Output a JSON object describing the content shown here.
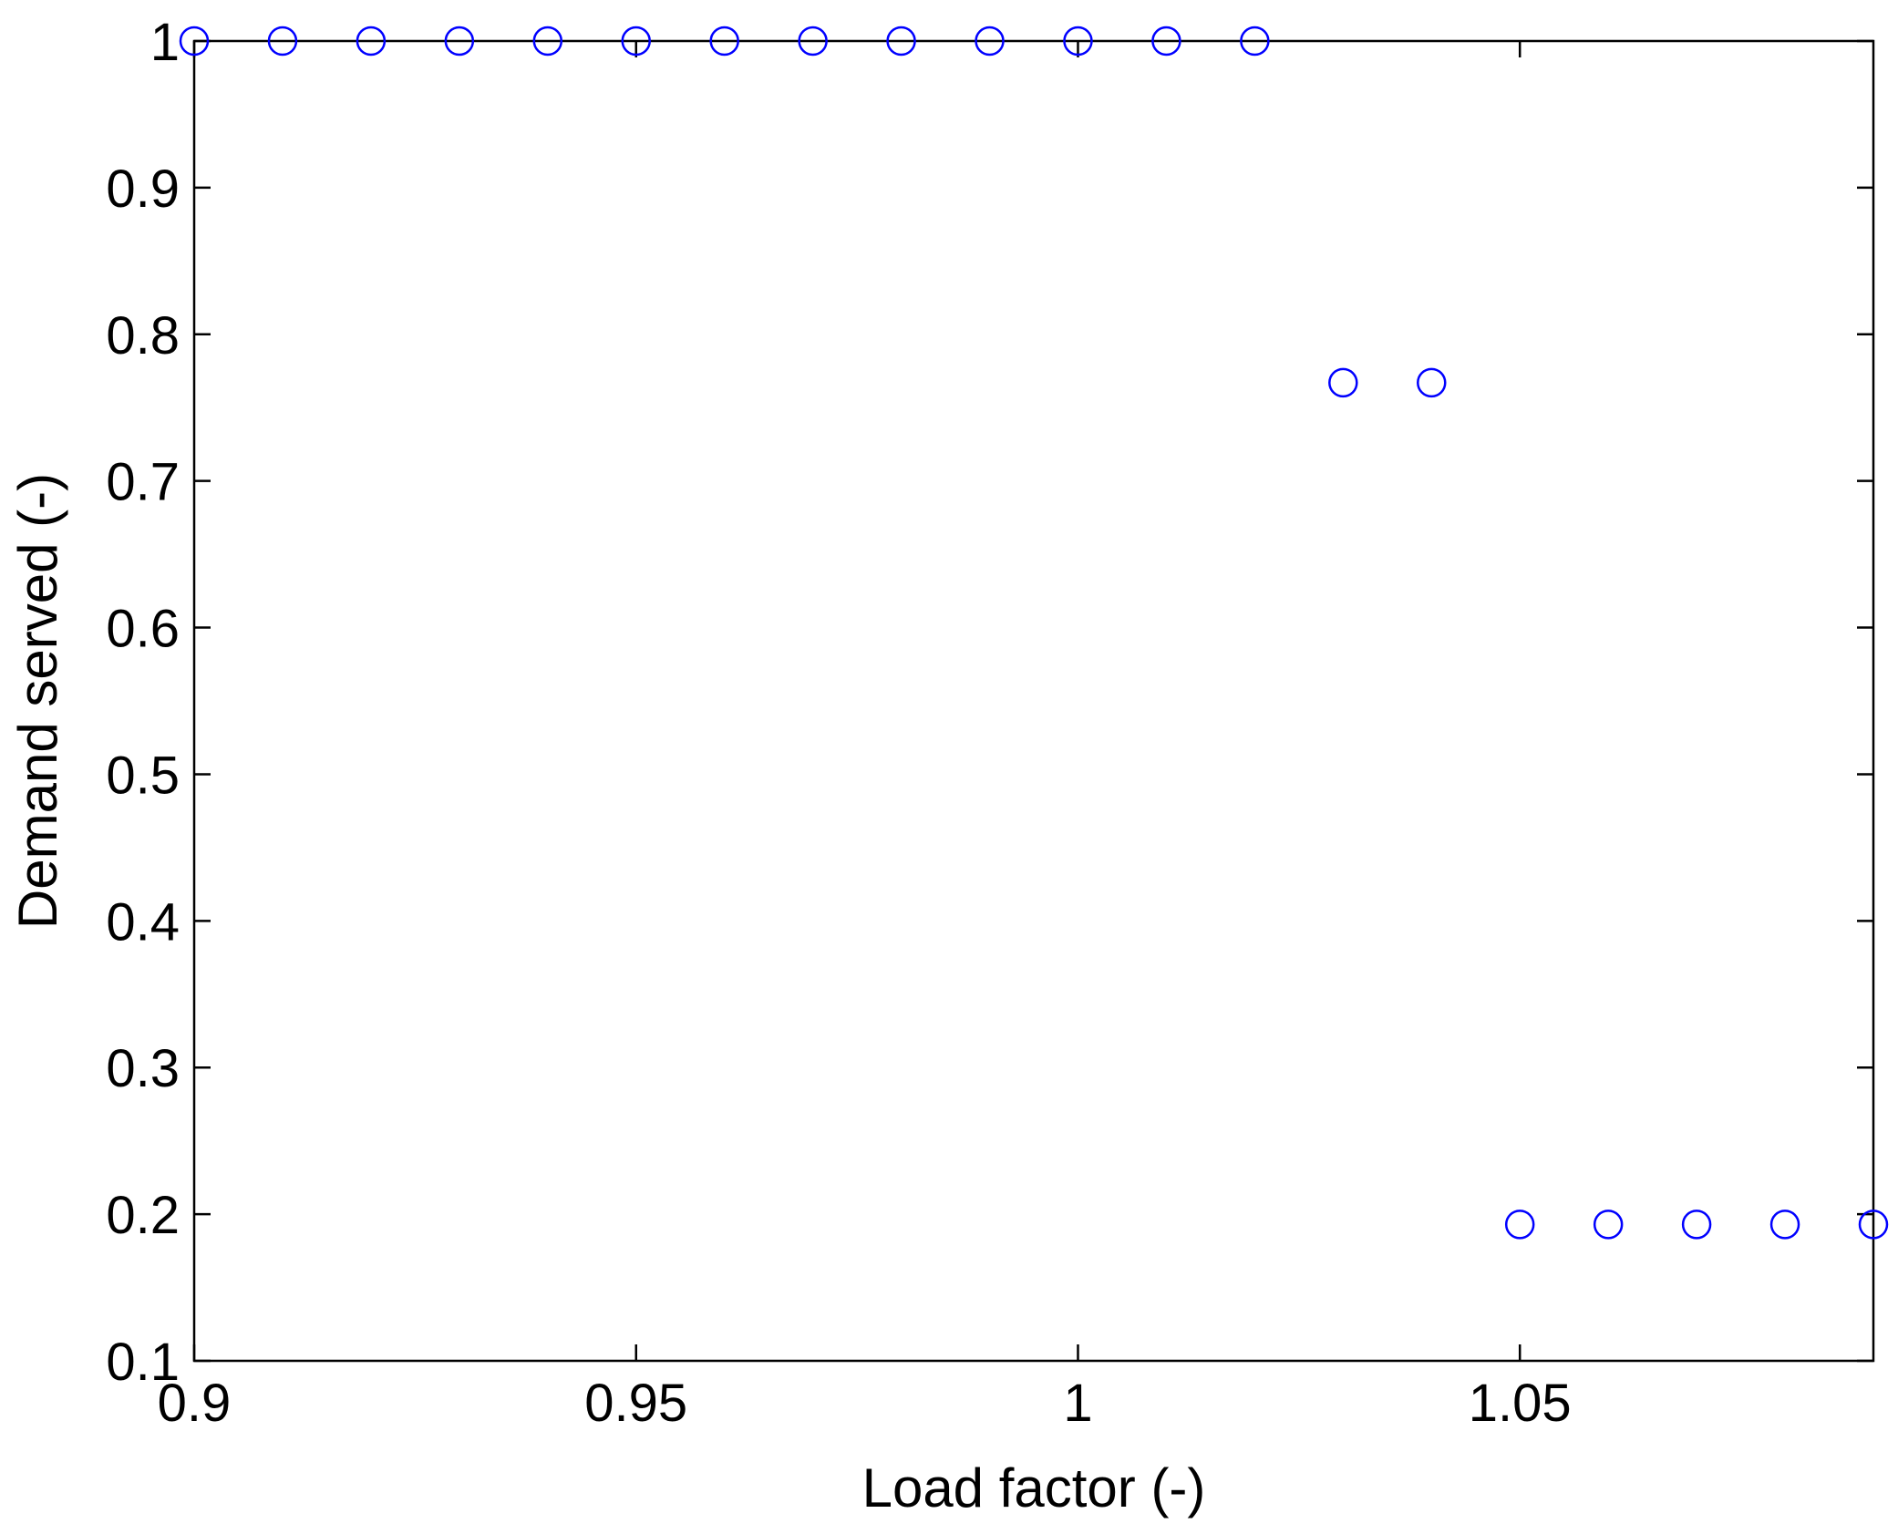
{
  "chart_data": {
    "type": "scatter",
    "title": "",
    "xlabel": "Load factor (-)",
    "ylabel": "Demand served (-)",
    "xlim": [
      0.9,
      1.09
    ],
    "ylim": [
      0.1,
      1.0
    ],
    "x_ticks": [
      0.9,
      0.95,
      1.0,
      1.05
    ],
    "x_tick_labels": [
      "0.9",
      "0.95",
      "1",
      "1.05"
    ],
    "y_ticks": [
      0.1,
      0.2,
      0.3,
      0.4,
      0.5,
      0.6,
      0.7,
      0.8,
      0.9,
      1.0
    ],
    "y_tick_labels": [
      "0.1",
      "0.2",
      "0.3",
      "0.4",
      "0.5",
      "0.6",
      "0.7",
      "0.8",
      "0.9",
      "1"
    ],
    "grid": false,
    "legend": "none",
    "marker": "open-circle",
    "marker_color": "#0000ff",
    "series": [
      {
        "x": [
          0.9,
          0.91,
          0.92,
          0.93,
          0.94,
          0.95,
          0.96,
          0.97,
          0.98,
          0.99,
          1.0,
          1.01,
          1.02,
          1.03,
          1.04,
          1.05,
          1.06,
          1.07,
          1.08,
          1.09
        ],
        "y": [
          1.0,
          1.0,
          1.0,
          1.0,
          1.0,
          1.0,
          1.0,
          1.0,
          1.0,
          1.0,
          1.0,
          1.0,
          1.0,
          0.767,
          0.767,
          0.193,
          0.193,
          0.193,
          0.193,
          0.193
        ]
      }
    ]
  }
}
